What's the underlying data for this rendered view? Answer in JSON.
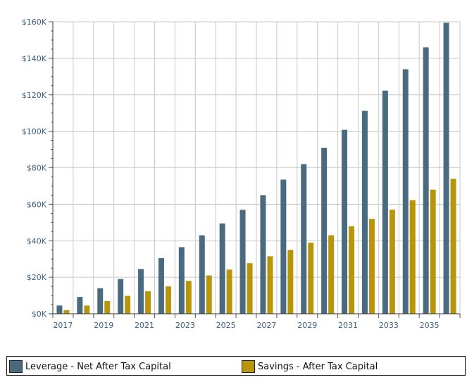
{
  "chart_data": {
    "type": "bar",
    "categories": [
      "2017",
      "2018",
      "2019",
      "2020",
      "2021",
      "2022",
      "2023",
      "2024",
      "2025",
      "2026",
      "2027",
      "2028",
      "2029",
      "2030",
      "2031",
      "2032",
      "2033",
      "2034",
      "2035",
      "2036"
    ],
    "x_tick_labels": [
      "2017",
      "2019",
      "2021",
      "2023",
      "2025",
      "2027",
      "2029",
      "2031",
      "2033",
      "2035"
    ],
    "y_tick_labels": [
      "$0K",
      "$20K",
      "$40K",
      "$60K",
      "$80K",
      "$100K",
      "$120K",
      "$140K",
      "$160K"
    ],
    "ylim": [
      0,
      160000
    ],
    "y_major_step": 20000,
    "grid": true,
    "legend_position": "bottom",
    "series": [
      {
        "name": "Leverage - Net After Tax Capital",
        "color": "#4a6a80",
        "values": [
          4500,
          9200,
          14000,
          19000,
          24500,
          30500,
          36500,
          43000,
          49500,
          57000,
          65000,
          73500,
          82000,
          91000,
          100800,
          111200,
          122300,
          134000,
          146000,
          159500
        ]
      },
      {
        "name": "Savings - After Tax Capital",
        "color": "#b8960b",
        "values": [
          2000,
          4500,
          7000,
          9800,
          12300,
          15000,
          18000,
          21000,
          24200,
          27700,
          31500,
          35000,
          39000,
          43000,
          48000,
          52000,
          57000,
          62300,
          68000,
          74000
        ]
      }
    ]
  }
}
